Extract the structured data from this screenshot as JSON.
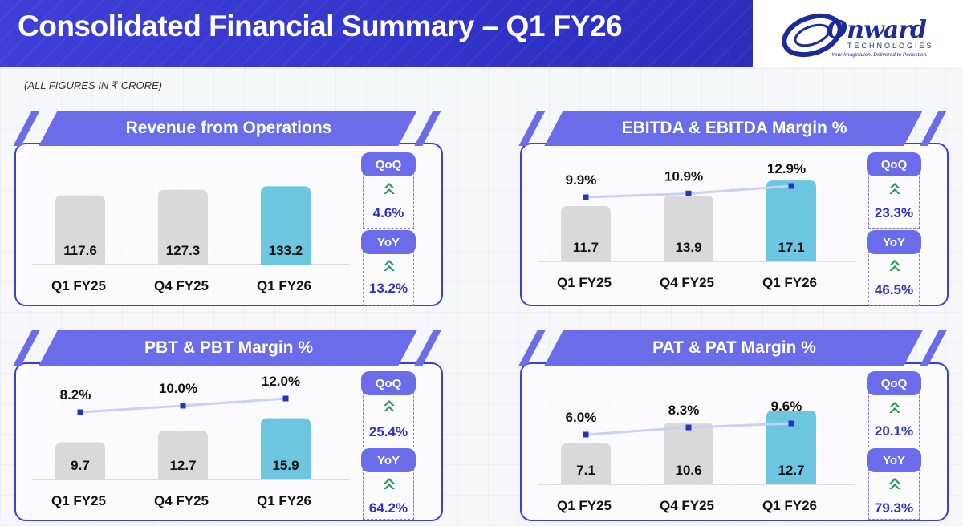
{
  "header": {
    "title": "Consolidated Financial Summary – Q1 FY26",
    "units": "(ALL FIGURES IN ₹ CRORE)"
  },
  "logo": {
    "word": "Onward",
    "subtitle": "TECHNOLOGIES",
    "tagline": "Your Imagination. Delivered to Perfection."
  },
  "colors": {
    "accent": "#3b3fd4",
    "banner": "#6a6cea",
    "bar_past": "#d9d9d9",
    "bar_current": "#6cc6e0",
    "margin_line": "#c9d0f5",
    "margin_marker": "#2233c8",
    "growth_text": "#2e31c4",
    "up_icon": "#1f9d55"
  },
  "chart_data": [
    {
      "type": "bar",
      "title": "Revenue from Operations",
      "categories": [
        "Q1 FY25",
        "Q4 FY25",
        "Q1 FY26"
      ],
      "values": [
        117.6,
        127.3,
        133.2
      ],
      "value_labels": [
        "117.6",
        "127.3",
        "133.2"
      ],
      "ylim": [
        0,
        150
      ],
      "qoq_label": "QoQ",
      "qoq": "4.6%",
      "yoy_label": "YoY",
      "yoy": "13.2%"
    },
    {
      "type": "bar",
      "title": "EBITDA & EBITDA Margin %",
      "categories": [
        "Q1 FY25",
        "Q4 FY25",
        "Q1 FY26"
      ],
      "values": [
        11.7,
        13.9,
        17.1
      ],
      "value_labels": [
        "11.7",
        "13.9",
        "17.1"
      ],
      "margins": [
        9.9,
        10.9,
        12.9
      ],
      "margin_labels": [
        "9.9%",
        "10.9%",
        "12.9%"
      ],
      "ylim": [
        0,
        20
      ],
      "qoq_label": "QoQ",
      "qoq": "23.3%",
      "yoy_label": "YoY",
      "yoy": "46.5%"
    },
    {
      "type": "bar",
      "title": "PBT & PBT Margin %",
      "categories": [
        "Q1 FY25",
        "Q4 FY25",
        "Q1 FY26"
      ],
      "values": [
        9.7,
        12.7,
        15.9
      ],
      "value_labels": [
        "9.7",
        "12.7",
        "15.9"
      ],
      "margins": [
        8.2,
        10.0,
        12.0
      ],
      "margin_labels": [
        "8.2%",
        "10.0%",
        "12.0%"
      ],
      "ylim": [
        0,
        20
      ],
      "qoq_label": "QoQ",
      "qoq": "25.4%",
      "yoy_label": "YoY",
      "yoy": "64.2%"
    },
    {
      "type": "bar",
      "title": "PAT & PAT Margin %",
      "categories": [
        "Q1 FY25",
        "Q4 FY25",
        "Q1 FY26"
      ],
      "values": [
        7.1,
        10.6,
        12.7
      ],
      "value_labels": [
        "7.1",
        "10.6",
        "12.7"
      ],
      "margins": [
        6.0,
        8.3,
        9.6
      ],
      "margin_labels": [
        "6.0%",
        "8.3%",
        "9.6%"
      ],
      "ylim": [
        0,
        16
      ],
      "qoq_label": "QoQ",
      "qoq": "20.1%",
      "yoy_label": "YoY",
      "yoy": "79.3%"
    }
  ]
}
